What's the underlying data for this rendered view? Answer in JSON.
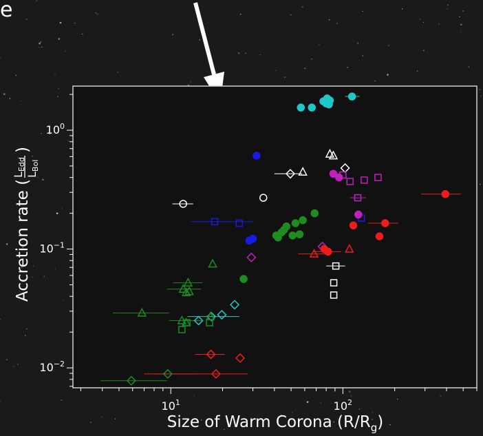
{
  "chart_data": {
    "type": "scatter",
    "xscale": "log",
    "yscale": "log",
    "xlim": [
      2.7,
      600
    ],
    "ylim": [
      0.0068,
      2.35
    ],
    "xlabel": "Size of Warm Corona  (R/R",
    "xlabel_sub": "g",
    "xlabel_close": ")",
    "ylabel": "Accretion rate (",
    "ylabel_num": "L",
    "ylabel_num_sub": "Edd",
    "ylabel_den": "L",
    "ylabel_den_sub": "Bol",
    "ylabel_close": ")",
    "x_major_ticks": [
      {
        "value": 10,
        "base": "10",
        "exp": "1"
      },
      {
        "value": 100,
        "base": "10",
        "exp": "2"
      }
    ],
    "y_major_ticks": [
      {
        "value": 0.01,
        "base": "10",
        "exp": "−2"
      },
      {
        "value": 0.1,
        "base": "10",
        "exp": "−1"
      },
      {
        "value": 1,
        "base": "10",
        "exp": "0"
      }
    ],
    "grid": false,
    "partial_title_text": "e",
    "colors": {
      "background": "#1a1a1a",
      "frame": "#cfcfcf",
      "text": "#ffffff",
      "arrow": "#ffffff",
      "cyan": "#1fc8c8",
      "blue": "#1a1ae6",
      "white": "#ffffff",
      "magenta": "#c020c0",
      "green": "#1e8c1e",
      "red": "#ee1c1c"
    },
    "series": [
      {
        "color": "cyan",
        "marker": "circle",
        "filled": true,
        "points": [
          {
            "x": 57,
            "y": 1.55
          },
          {
            "x": 66,
            "y": 1.55
          },
          {
            "x": 77,
            "y": 1.75
          },
          {
            "x": 81,
            "y": 1.85
          },
          {
            "x": 84,
            "y": 1.78
          },
          {
            "x": 80,
            "y": 1.68
          },
          {
            "x": 83,
            "y": 1.65
          },
          {
            "x": 113,
            "y": 1.92,
            "xerr": [
              103,
              125
            ]
          }
        ]
      },
      {
        "color": "cyan",
        "marker": "diamond",
        "filled": false,
        "points": [
          {
            "x": 23.5,
            "y": 0.034
          },
          {
            "x": 19.8,
            "y": 0.028
          },
          {
            "x": 17.2,
            "y": 0.027,
            "xerr": [
              12.5,
              25
            ]
          },
          {
            "x": 14.5,
            "y": 0.025
          }
        ]
      },
      {
        "color": "blue",
        "marker": "circle",
        "filled": true,
        "points": [
          {
            "x": 31.5,
            "y": 0.61
          },
          {
            "x": 28.6,
            "y": 0.118
          },
          {
            "x": 30,
            "y": 0.122
          }
        ]
      },
      {
        "color": "blue",
        "marker": "square",
        "filled": false,
        "points": [
          {
            "x": 18,
            "y": 0.17,
            "xerr": [
              13,
              30
            ]
          },
          {
            "x": 25,
            "y": 0.165
          },
          {
            "x": 128,
            "y": 0.182
          }
        ]
      },
      {
        "color": "white",
        "marker": "circle",
        "filled": false,
        "points": [
          {
            "x": 11.8,
            "y": 0.24,
            "xerr": [
              10.2,
              13.5
            ]
          },
          {
            "x": 34.5,
            "y": 0.27
          }
        ]
      },
      {
        "color": "white",
        "marker": "triangle",
        "filled": false,
        "points": [
          {
            "x": 84,
            "y": 0.63
          },
          {
            "x": 88,
            "y": 0.61
          },
          {
            "x": 58.5,
            "y": 0.445
          }
        ]
      },
      {
        "color": "white",
        "marker": "diamond",
        "filled": false,
        "points": [
          {
            "x": 49.5,
            "y": 0.43,
            "xerr": [
              40,
              58
            ]
          },
          {
            "x": 103,
            "y": 0.48
          }
        ]
      },
      {
        "color": "white",
        "marker": "square",
        "filled": false,
        "points": [
          {
            "x": 91,
            "y": 0.072,
            "xerr": [
              80,
              103
            ]
          },
          {
            "x": 88.5,
            "y": 0.052
          },
          {
            "x": 88.5,
            "y": 0.041
          }
        ]
      },
      {
        "color": "magenta",
        "marker": "circle",
        "filled": true,
        "points": [
          {
            "x": 88,
            "y": 0.43
          },
          {
            "x": 95,
            "y": 0.4
          },
          {
            "x": 123,
            "y": 0.195
          }
        ]
      },
      {
        "color": "magenta",
        "marker": "square",
        "filled": false,
        "points": [
          {
            "x": 100,
            "y": 0.42
          },
          {
            "x": 110,
            "y": 0.37
          },
          {
            "x": 133,
            "y": 0.38
          },
          {
            "x": 160,
            "y": 0.4
          },
          {
            "x": 122,
            "y": 0.27,
            "xerr": [
              110,
              136
            ]
          }
        ]
      },
      {
        "color": "magenta",
        "marker": "diamond",
        "filled": false,
        "points": [
          {
            "x": 29.4,
            "y": 0.085
          },
          {
            "x": 76,
            "y": 0.105
          }
        ]
      },
      {
        "color": "green",
        "marker": "circle",
        "filled": true,
        "points": [
          {
            "x": 68.5,
            "y": 0.2
          },
          {
            "x": 58.5,
            "y": 0.175
          },
          {
            "x": 53,
            "y": 0.165
          },
          {
            "x": 47,
            "y": 0.155
          },
          {
            "x": 45.5,
            "y": 0.145
          },
          {
            "x": 44,
            "y": 0.138
          },
          {
            "x": 42,
            "y": 0.125
          },
          {
            "x": 41,
            "y": 0.13
          },
          {
            "x": 51,
            "y": 0.13
          },
          {
            "x": 56,
            "y": 0.133
          },
          {
            "x": 26.5,
            "y": 0.056
          }
        ]
      },
      {
        "color": "green",
        "marker": "triangle",
        "filled": false,
        "points": [
          {
            "x": 17.5,
            "y": 0.075
          },
          {
            "x": 12.6,
            "y": 0.052,
            "xerr": [
              10.3,
              15.3
            ]
          },
          {
            "x": 11.8,
            "y": 0.046,
            "xerr": [
              9.5,
              15
            ]
          },
          {
            "x": 12.3,
            "y": 0.043
          },
          {
            "x": 12.8,
            "y": 0.044
          },
          {
            "x": 6.8,
            "y": 0.029,
            "xerr": [
              4.6,
              9.8
            ]
          },
          {
            "x": 11.6,
            "y": 0.025,
            "xerr": [
              9.8,
              15.2
            ]
          },
          {
            "x": 12.3,
            "y": 0.024
          },
          {
            "x": 17,
            "y": 0.027
          }
        ]
      },
      {
        "color": "green",
        "marker": "square",
        "filled": false,
        "points": [
          {
            "x": 11.6,
            "y": 0.021
          },
          {
            "x": 12.4,
            "y": 0.024
          },
          {
            "x": 16.8,
            "y": 0.024
          }
        ]
      },
      {
        "color": "green",
        "marker": "diamond",
        "filled": false,
        "points": [
          {
            "x": 9.6,
            "y": 0.0089,
            "xerr": [
              8,
              14
            ]
          },
          {
            "x": 5.9,
            "y": 0.0078,
            "xerr": [
              3.9,
              9.5
            ]
          }
        ]
      },
      {
        "color": "red",
        "marker": "circle",
        "filled": true,
        "points": [
          {
            "x": 394,
            "y": 0.29,
            "xerr": [
              285,
              485
            ]
          },
          {
            "x": 176,
            "y": 0.165,
            "xerr": [
              140,
              210
            ]
          },
          {
            "x": 115,
            "y": 0.158
          },
          {
            "x": 163,
            "y": 0.128
          },
          {
            "x": 82,
            "y": 0.095,
            "xerr": [
              67,
              98
            ]
          },
          {
            "x": 78,
            "y": 0.1
          }
        ]
      },
      {
        "color": "red",
        "marker": "triangle",
        "filled": false,
        "points": [
          {
            "x": 68,
            "y": 0.091,
            "xerr": [
              55,
              82
            ]
          },
          {
            "x": 109,
            "y": 0.1
          }
        ]
      },
      {
        "color": "red",
        "marker": "diamond",
        "filled": false,
        "points": [
          {
            "x": 17.1,
            "y": 0.013,
            "xerr": [
              13.8,
              20.6
            ]
          },
          {
            "x": 25.3,
            "y": 0.0121
          },
          {
            "x": 18.3,
            "y": 0.0089,
            "xerr": [
              7,
              28
            ]
          }
        ]
      }
    ]
  }
}
